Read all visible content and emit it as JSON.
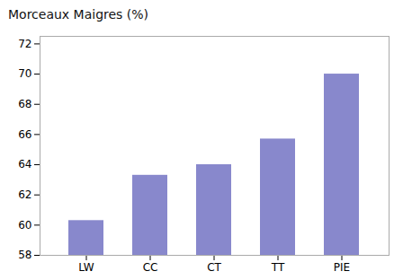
{
  "chart_data": {
    "type": "bar",
    "title": "Morceaux Maigres (%)",
    "categories": [
      "LW",
      "CC",
      "CT",
      "TT",
      "PIE"
    ],
    "values": [
      60.3,
      63.3,
      64.0,
      65.7,
      70.0
    ],
    "color": "#8888cc",
    "ylim": [
      58,
      72.5
    ],
    "yticks": [
      58,
      60,
      62,
      64,
      66,
      68,
      70,
      72
    ],
    "grid": false
  }
}
